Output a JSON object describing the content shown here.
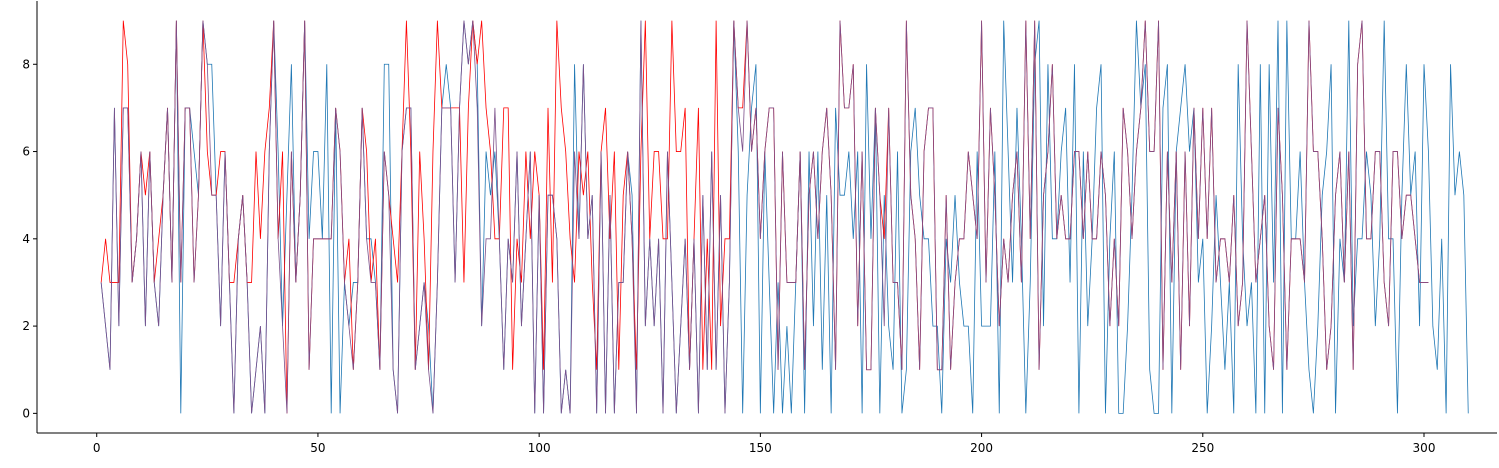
{
  "chart_data": {
    "type": "line",
    "title": "",
    "xlabel": "",
    "ylabel": "",
    "xlim": [
      -13.5,
      316.5
    ],
    "ylim": [
      -0.45,
      9.45
    ],
    "xticks": [
      0,
      50,
      100,
      150,
      200,
      250,
      300
    ],
    "yticks": [
      0,
      2,
      4,
      6,
      8
    ],
    "grid": false,
    "series": [
      {
        "color": "#1f77b4",
        "x_start": 1,
        "values": [
          3,
          2,
          1,
          7,
          2,
          7,
          7,
          3,
          4,
          6,
          2,
          6,
          3,
          2,
          5,
          7,
          3,
          9,
          0,
          7,
          7,
          6,
          5,
          9,
          8,
          8,
          5,
          2,
          6,
          3,
          0,
          4,
          5,
          3,
          0,
          1,
          2,
          0,
          6,
          9,
          6,
          2,
          5,
          8,
          3,
          5,
          9,
          4,
          6,
          6,
          4,
          8,
          0,
          7,
          0,
          3,
          2,
          3,
          3,
          7,
          4,
          4,
          3,
          1,
          8,
          8,
          1,
          0,
          6,
          7,
          7,
          1,
          2,
          3,
          2,
          0,
          3,
          7,
          8,
          7,
          3,
          7,
          9,
          8,
          9,
          8,
          2,
          6,
          5,
          6,
          4,
          1,
          4,
          3,
          6,
          2,
          4,
          6,
          0,
          5,
          0,
          5,
          5,
          4,
          0,
          1,
          0,
          8,
          4,
          8,
          4,
          5,
          0,
          6,
          0,
          5,
          0,
          3,
          3,
          6,
          5,
          0,
          9,
          2,
          4,
          2,
          4,
          0,
          6,
          3,
          0,
          2,
          4,
          1,
          4,
          0,
          5,
          1,
          6,
          1,
          5,
          0,
          3,
          9,
          6,
          0,
          5,
          7,
          8,
          0,
          6,
          3,
          0,
          3,
          0,
          2,
          0,
          3,
          6,
          0,
          6,
          2,
          6,
          1,
          5,
          0,
          7,
          5,
          5,
          6,
          4,
          6,
          0,
          8,
          4,
          7,
          0,
          5,
          2,
          1,
          6,
          0,
          1,
          6,
          7,
          5,
          4,
          4,
          2,
          2,
          0,
          4,
          3,
          5,
          3,
          2,
          2,
          0,
          6,
          2,
          2,
          2,
          6,
          0,
          9,
          6,
          3,
          7,
          4,
          0,
          3,
          8,
          9,
          2,
          8,
          4,
          4,
          6,
          7,
          3,
          8,
          0,
          6,
          2,
          4,
          7,
          8,
          0,
          4,
          6,
          0,
          0,
          2,
          5,
          9,
          7,
          8,
          1,
          0,
          0,
          7,
          8,
          0,
          6,
          7,
          8,
          6,
          7,
          3,
          4,
          0,
          2,
          5,
          3,
          1,
          3,
          0,
          8,
          4,
          2,
          3,
          0,
          8,
          0,
          8,
          3,
          9,
          0,
          9,
          4,
          4,
          6,
          3,
          1,
          0,
          2,
          5,
          6,
          8,
          0,
          4,
          3,
          9,
          2,
          4,
          4,
          6,
          5,
          2,
          4,
          9,
          4,
          4,
          0,
          5,
          8,
          5,
          6,
          2,
          8,
          6,
          2,
          1,
          4,
          0,
          8,
          5,
          6,
          5,
          0
        ]
      },
      {
        "color": "#ff0000",
        "x_start": 1,
        "values": [
          3,
          4,
          3,
          3,
          3,
          9,
          8,
          3,
          4,
          6,
          5,
          6,
          3,
          4,
          5,
          7,
          3,
          9,
          3,
          7,
          7,
          3,
          5,
          9,
          6,
          5,
          5,
          6,
          6,
          3,
          3,
          4,
          5,
          3,
          3,
          6,
          4,
          6,
          7,
          9,
          4,
          6,
          0,
          6,
          3,
          5,
          9,
          1,
          4,
          4,
          4,
          4,
          4,
          7,
          6,
          3,
          4,
          1,
          3,
          7,
          6,
          3,
          4,
          1,
          6,
          5,
          4,
          3,
          6,
          9,
          6,
          1,
          6,
          4,
          1,
          6,
          9,
          7,
          7,
          7,
          7,
          7,
          3,
          7,
          9,
          8,
          9,
          7,
          6,
          4,
          4,
          7,
          7,
          1,
          4,
          3,
          6,
          4,
          6,
          5,
          1,
          7,
          3,
          9,
          7,
          6,
          4,
          3,
          6,
          5,
          6,
          3,
          1,
          6,
          7,
          4,
          6,
          1,
          5,
          6,
          4,
          1,
          6,
          9,
          4,
          6,
          6,
          4,
          4,
          9,
          6,
          6,
          7,
          1,
          4,
          7,
          1,
          4,
          1,
          9,
          2,
          4,
          4,
          9,
          7,
          7,
          9,
          6,
          7,
          4,
          6,
          7,
          7,
          1,
          6,
          3,
          3,
          3,
          6,
          1,
          5,
          6,
          4,
          6,
          7,
          5,
          1,
          9,
          7,
          7,
          8,
          2,
          6,
          1,
          1,
          7,
          5,
          4,
          7,
          3,
          3,
          1,
          9,
          5,
          4,
          1,
          6,
          7,
          7,
          1,
          1,
          5,
          1,
          3,
          4,
          4,
          6,
          5,
          4,
          9,
          3,
          7,
          5,
          2,
          4,
          3,
          5,
          6,
          3,
          9,
          4,
          9,
          1,
          5,
          6,
          8,
          4,
          5,
          4,
          4,
          6,
          6,
          4,
          6,
          4,
          4,
          6,
          5,
          2,
          4,
          2,
          7,
          6,
          4,
          6,
          7,
          9,
          6,
          6,
          9,
          1,
          6,
          3,
          6,
          1,
          6,
          2,
          7,
          4,
          7,
          4,
          7,
          3,
          4,
          4,
          3,
          5,
          2,
          3,
          9,
          6,
          3,
          4,
          5,
          2,
          1,
          7,
          5,
          1,
          4,
          4,
          4,
          3,
          9,
          6,
          6,
          4,
          1,
          2,
          5,
          6,
          3,
          6,
          1,
          8,
          9,
          4,
          4,
          6,
          6,
          3,
          2,
          6,
          6,
          4,
          5,
          5,
          4,
          3,
          3,
          3
        ]
      },
      {
        "color": "#7b4f8a",
        "x_start": 1,
        "values": [
          3,
          2,
          1,
          7,
          2,
          7,
          7,
          3,
          4,
          6,
          2,
          6,
          3,
          2,
          5,
          7,
          3,
          9,
          3,
          7,
          7,
          3,
          5,
          9,
          8,
          5,
          5,
          2,
          6,
          3,
          0,
          4,
          5,
          3,
          0,
          1,
          2,
          0,
          6,
          9,
          4,
          2,
          0,
          6,
          3,
          5,
          9,
          1,
          4,
          4,
          4,
          4,
          4,
          7,
          6,
          3,
          2,
          1,
          3,
          7,
          4,
          3,
          3,
          1,
          6,
          5,
          1,
          0,
          6,
          7,
          7,
          1,
          2,
          3,
          1,
          0,
          3,
          7,
          7,
          7,
          3,
          7,
          9,
          8,
          9,
          7,
          2,
          4,
          4,
          7,
          4,
          1,
          4,
          3,
          6,
          2,
          4,
          6,
          0,
          5,
          0,
          5,
          5,
          4,
          0,
          1,
          0,
          6,
          4,
          8,
          4,
          5,
          0,
          6,
          0,
          5,
          0,
          3,
          3,
          6,
          4,
          0,
          9,
          2,
          4,
          2,
          4,
          0,
          6,
          3,
          0,
          2,
          4,
          1,
          4,
          0,
          5,
          1,
          6,
          1,
          5,
          0,
          3,
          9,
          7,
          6,
          9,
          6,
          7,
          4,
          6,
          7,
          7,
          1,
          6,
          3,
          3,
          3,
          6,
          1,
          5,
          6,
          4,
          6,
          7,
          5,
          1,
          9,
          7,
          7,
          8,
          2,
          6,
          1,
          1,
          7,
          5,
          2,
          7,
          3,
          3,
          1,
          9,
          5,
          4,
          1,
          6,
          7,
          7,
          1,
          1,
          5,
          1,
          3,
          4,
          4,
          6,
          5,
          4,
          9,
          3,
          7,
          5,
          2,
          4,
          3,
          5,
          6,
          3,
          9,
          4,
          9,
          1,
          5,
          6,
          8,
          4,
          5,
          4,
          4,
          6,
          6,
          4,
          6,
          4,
          4,
          6,
          5,
          2,
          4,
          2,
          7,
          6,
          4,
          6,
          7,
          9,
          6,
          6,
          9,
          1,
          6,
          3,
          6,
          1,
          6,
          2,
          7,
          4,
          7,
          4,
          7,
          3,
          4,
          4,
          3,
          5,
          2,
          3,
          9,
          6,
          3,
          4,
          5,
          2,
          1,
          7,
          5,
          1,
          4,
          4,
          4,
          3,
          9,
          6,
          6,
          4,
          1,
          2,
          5,
          6,
          3,
          6,
          1,
          8,
          9,
          4,
          4,
          6,
          6,
          3,
          2,
          6,
          6,
          4,
          5,
          5,
          4,
          3,
          3,
          3
        ]
      }
    ]
  }
}
